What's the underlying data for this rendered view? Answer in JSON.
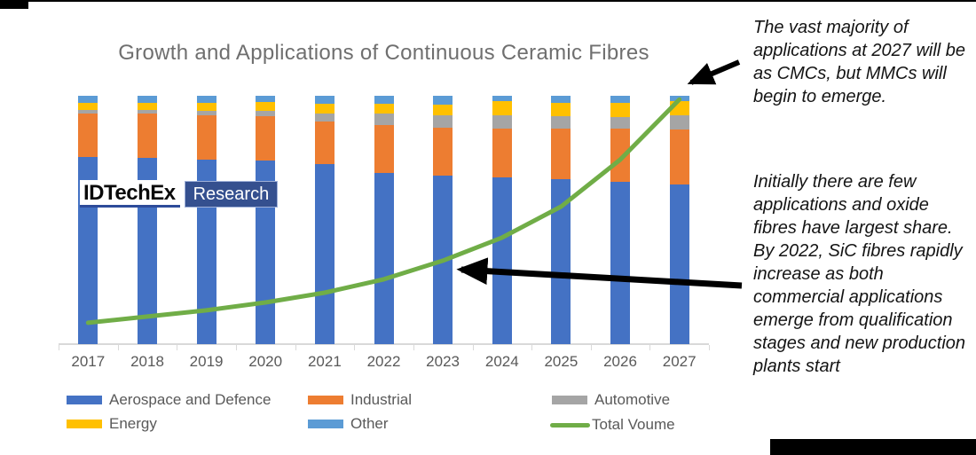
{
  "title": "Growth and Applications of Continuous Ceramic Fibres",
  "logo": {
    "name": "IDTechEx",
    "division": "Research"
  },
  "annotations": {
    "top": "The vast majority of applications at 2027 will be as CMCs, but MMCs will begin to emerge.",
    "bottom": "Initially there are few applications and oxide fibres have largest share. By 2022, SiC fibres rapidly increase as both commercial applications emerge from qualification stages and new production plants start"
  },
  "chart_data": {
    "type": "bar",
    "subtype": "100%-stacked-column-with-line",
    "title": "Growth and Applications of Continuous Ceramic Fibres",
    "categories": [
      "2017",
      "2018",
      "2019",
      "2020",
      "2021",
      "2022",
      "2023",
      "2024",
      "2025",
      "2026",
      "2027"
    ],
    "series": [
      {
        "name": "Aerospace and Defence",
        "color": "#4472C4",
        "values": [
          75.5,
          75.0,
          74.3,
          74.0,
          72.5,
          69.0,
          67.8,
          67.1,
          66.3,
          65.4,
          64.2
        ]
      },
      {
        "name": "Industrial",
        "color": "#ED7D31",
        "values": [
          17.3,
          18.0,
          17.9,
          17.9,
          17.3,
          19.3,
          19.3,
          19.6,
          20.5,
          21.2,
          22.4
        ]
      },
      {
        "name": "Automotive",
        "color": "#A5A5A5",
        "values": [
          1.4,
          1.2,
          1.8,
          1.9,
          3.0,
          4.6,
          5.1,
          5.4,
          5.0,
          4.8,
          5.6
        ]
      },
      {
        "name": "Energy",
        "color": "#FFC000",
        "values": [
          3.1,
          3.0,
          3.2,
          3.6,
          4.1,
          3.9,
          4.2,
          5.6,
          5.4,
          5.8,
          5.6
        ]
      },
      {
        "name": "Other",
        "color": "#5B9BD5",
        "values": [
          2.7,
          2.8,
          2.8,
          2.6,
          3.1,
          3.2,
          3.6,
          2.3,
          2.8,
          2.8,
          2.2
        ]
      }
    ],
    "series_units": "percent share of applications (bars sum to 100%)",
    "line_series": {
      "name": "Total Voume",
      "color": "#70AD47",
      "values": [
        8.6,
        11.1,
        13.6,
        16.8,
        20.7,
        26.1,
        33.6,
        42.9,
        55.4,
        74.3,
        98.5
      ],
      "units": "relative total volume (value axis not shown)"
    },
    "ylim": [
      0,
      100
    ],
    "y_axis_visible": false,
    "grid": false,
    "legend_position": "bottom",
    "axis_color": "#D9D9D9",
    "label_color": "#595959"
  },
  "legend": {
    "rows": [
      [
        {
          "label": "Aerospace and Defence",
          "color": "#4472C4",
          "shape": "rect"
        },
        {
          "label": "Industrial",
          "color": "#ED7D31",
          "shape": "rect"
        },
        {
          "label": "Automotive",
          "color": "#A5A5A5",
          "shape": "rect"
        }
      ],
      [
        {
          "label": "Energy",
          "color": "#FFC000",
          "shape": "rect"
        },
        {
          "label": "Other",
          "color": "#5B9BD5",
          "shape": "rect"
        },
        {
          "label": "Total Voume",
          "color": "#70AD47",
          "shape": "line"
        }
      ]
    ]
  }
}
